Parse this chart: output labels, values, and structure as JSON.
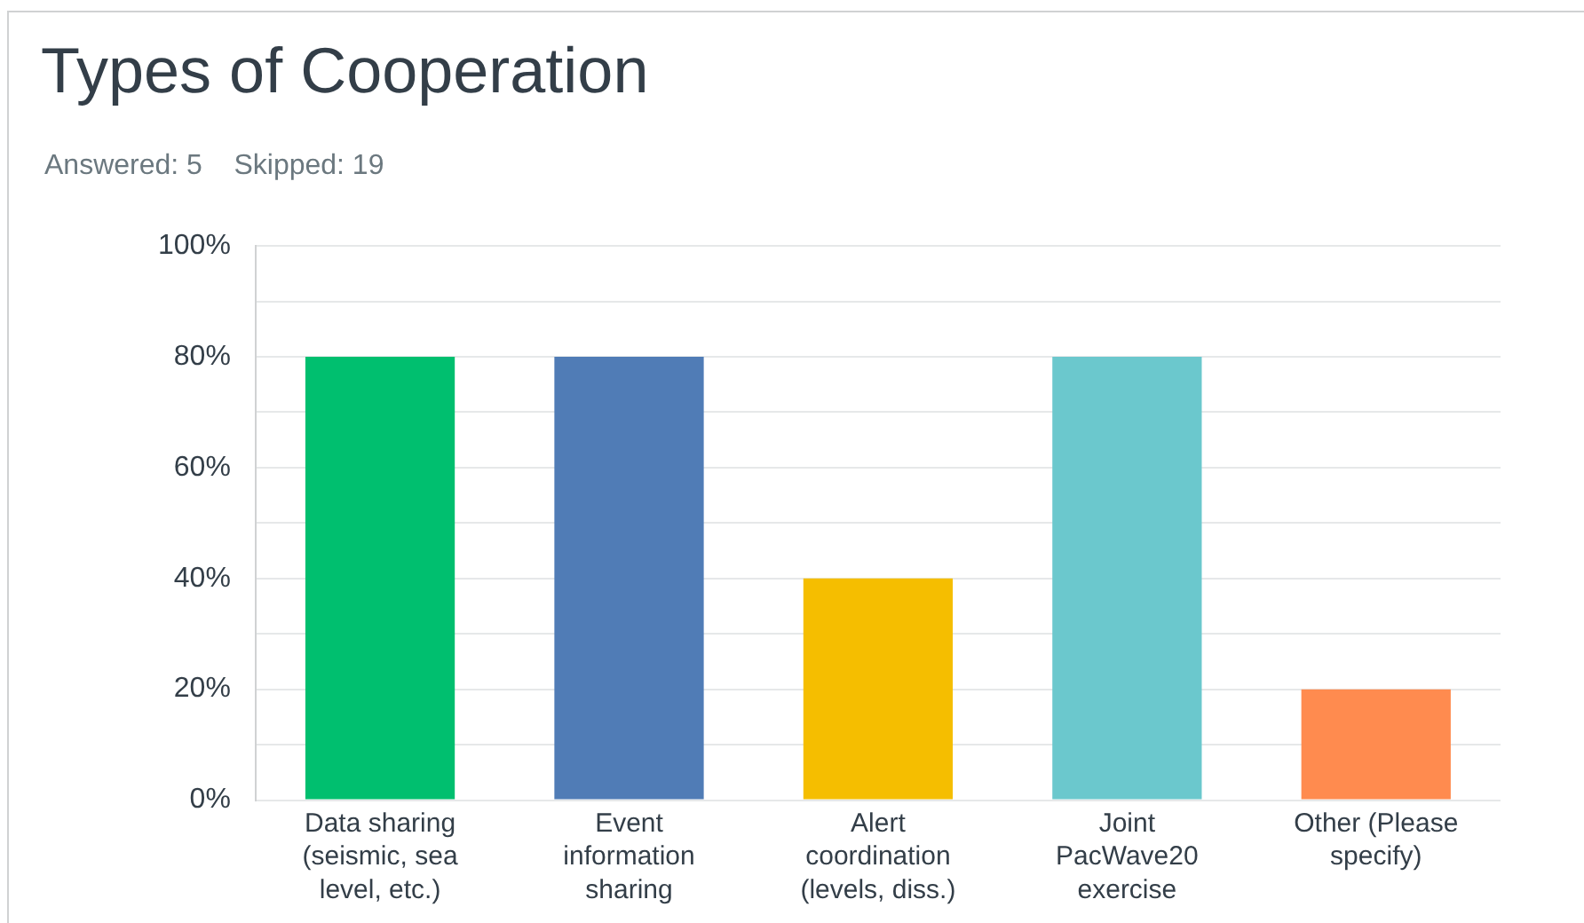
{
  "chart_data": {
    "type": "bar",
    "title": "Types of Cooperation",
    "subtitle": "Answered: 5    Skipped: 19",
    "categories": [
      "Data sharing (seismic, sea level, etc.)",
      "Event information sharing",
      "Alert coordination (levels, diss.)",
      "Joint PacWave20 exercise",
      "Other (Please specify)"
    ],
    "values": [
      80,
      80,
      40,
      80,
      20
    ],
    "colors": [
      "#00bf6f",
      "#507cb6",
      "#f5be00",
      "#6bc8cd",
      "#ff8b4f"
    ],
    "ylim": [
      0,
      100
    ],
    "yticks": [
      {
        "value": 0,
        "label": "0%"
      },
      {
        "value": 10,
        "label": null
      },
      {
        "value": 20,
        "label": "20%"
      },
      {
        "value": 30,
        "label": null
      },
      {
        "value": 40,
        "label": "40%"
      },
      {
        "value": 50,
        "label": null
      },
      {
        "value": 60,
        "label": "60%"
      },
      {
        "value": 70,
        "label": null
      },
      {
        "value": 80,
        "label": "80%"
      },
      {
        "value": 90,
        "label": null
      },
      {
        "value": 100,
        "label": "100%"
      }
    ],
    "grid": "y",
    "legend": false
  }
}
